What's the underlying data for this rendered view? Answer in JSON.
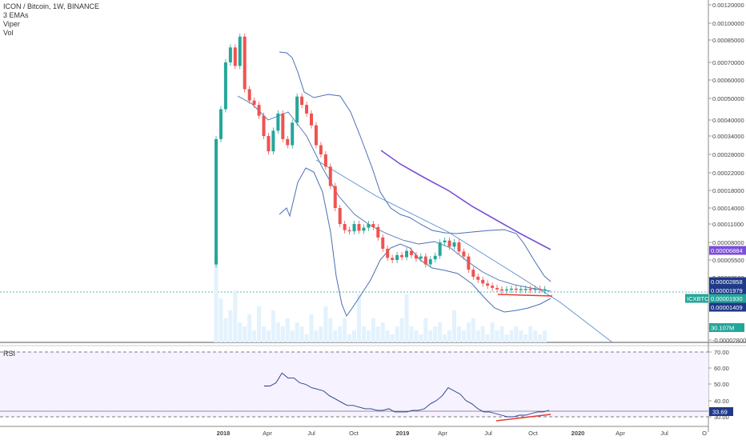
{
  "legend": {
    "title": "ICON / Bitcoin, 1W, BINANCE",
    "studies": [
      "3 EMAs",
      "Viper",
      "Vol"
    ]
  },
  "rsi_label": "RSI",
  "price_axis": {
    "ticks": [
      "0.00120000",
      "0.00100000",
      "0.00085000",
      "0.00070000",
      "0.00060000",
      "0.00050000",
      "0.00040000",
      "0.00034000",
      "0.00028000",
      "0.00022000",
      "0.00018000",
      "0.00014000",
      "0.00011000",
      "0.00008000",
      "0.00005500",
      "0.00003500",
      "0.00001000",
      "-0.00002800"
    ]
  },
  "price_labels": [
    {
      "text": "0.00006884",
      "color": "#7b4fd8"
    },
    {
      "text": "0.00002858",
      "color": "#1f3a8a"
    },
    {
      "text": "0.00001979",
      "color": "#1f3a8a"
    },
    {
      "text": "0.00001930",
      "color": "#26a69a"
    },
    {
      "text": "0.00001409",
      "color": "#1f3a8a"
    }
  ],
  "symbol_tag": "ICXBTC",
  "volume_label": "30.107M",
  "rsi_axis": {
    "ticks": [
      "70.00",
      "60.00",
      "50.00",
      "40.00",
      "30.00"
    ],
    "current": "33.69"
  },
  "time_axis": [
    "2018",
    "Apr",
    "Jul",
    "Oct",
    "2019",
    "Apr",
    "Jul",
    "Oct",
    "2020",
    "Apr",
    "Jul",
    "O"
  ],
  "chart_data": {
    "type": "candlestick",
    "series": [
      {
        "name": "ICXBTC",
        "kind": "candles",
        "values": [
          [
            5e-05,
            0.00033
          ],
          [
            0.00033,
            0.00045
          ],
          [
            0.00045,
            0.0007
          ],
          [
            0.0007,
            0.0008
          ],
          [
            0.0008,
            0.00068
          ],
          [
            0.00068,
            0.00088
          ],
          [
            0.00088,
            0.00055
          ],
          [
            0.00055,
            0.00049
          ],
          [
            0.00049,
            0.00047
          ],
          [
            0.00047,
            0.00042
          ],
          [
            0.00042,
            0.00034
          ],
          [
            0.00034,
            0.00029
          ],
          [
            0.00029,
            0.00036
          ],
          [
            0.00036,
            0.00043
          ],
          [
            0.00043,
            0.00033
          ],
          [
            0.00033,
            0.00031
          ],
          [
            0.00031,
            0.00039
          ],
          [
            0.00039,
            0.00051
          ],
          [
            0.00051,
            0.00047
          ],
          [
            0.00047,
            0.00043
          ],
          [
            0.00043,
            0.00038
          ],
          [
            0.00038,
            0.00031
          ],
          [
            0.00031,
            0.00028
          ],
          [
            0.00028,
            0.00024
          ],
          [
            0.00024,
            0.00019
          ],
          [
            0.00019,
            0.00014
          ],
          [
            0.00014,
            0.00011
          ],
          [
            0.00011,
            0.0001
          ],
          [
            0.0001,
            9.8e-05
          ],
          [
            9.8e-05,
            0.00011
          ],
          [
            0.00011,
            9.9e-05
          ],
          [
            9.9e-05,
            0.000104
          ],
          [
            0.000104,
            0.00011
          ],
          [
            0.00011,
            0.000105
          ],
          [
            0.000105,
            8.8e-05
          ],
          [
            8.8e-05,
            7.1e-05
          ],
          [
            7.1e-05,
            5.8e-05
          ],
          [
            5.8e-05,
            5.5e-05
          ],
          [
            5.5e-05,
            6.2e-05
          ],
          [
            6.2e-05,
            5.9e-05
          ],
          [
            5.9e-05,
            6.8e-05
          ],
          [
            6.8e-05,
            6.2e-05
          ],
          [
            6.2e-05,
            5.7e-05
          ],
          [
            5.7e-05,
            6e-05
          ],
          [
            6e-05,
            5e-05
          ],
          [
            5e-05,
            5.6e-05
          ],
          [
            5.6e-05,
            6.1e-05
          ],
          [
            6.1e-05,
            8e-05
          ],
          [
            8e-05,
            8.3e-05
          ],
          [
            8.3e-05,
            7.4e-05
          ],
          [
            7.4e-05,
            8e-05
          ],
          [
            8e-05,
            6.7e-05
          ],
          [
            6.7e-05,
            6e-05
          ],
          [
            6e-05,
            4.4e-05
          ],
          [
            4.4e-05,
            3.6e-05
          ],
          [
            3.6e-05,
            3.2e-05
          ],
          [
            3.2e-05,
            2.7e-05
          ],
          [
            2.7e-05,
            2.4e-05
          ],
          [
            2.4e-05,
            2.1e-05
          ],
          [
            2.1e-05,
            1.9e-05
          ],
          [
            1.9e-05,
            1.8e-05
          ],
          [
            1.8e-05,
            1.9e-05
          ],
          [
            1.9e-05,
            2e-05
          ],
          [
            2e-05,
            1.9e-05
          ],
          [
            1.9e-05,
            1.95e-05
          ],
          [
            1.95e-05,
            1.97e-05
          ],
          [
            1.97e-05,
            1.9e-05
          ],
          [
            1.9e-05,
            1.98e-05
          ],
          [
            1.98e-05,
            1.9e-05
          ],
          [
            1.9e-05,
            1.93e-05
          ]
        ]
      }
    ],
    "rsi_values": [
      49,
      49,
      51,
      57,
      54,
      54,
      51,
      50,
      48,
      47,
      46,
      43,
      41,
      39,
      37,
      37,
      36,
      35,
      35,
      34,
      34,
      35,
      33,
      33,
      33,
      34,
      34,
      35,
      38,
      40,
      43,
      48,
      46,
      44,
      40,
      38,
      35,
      33,
      33,
      32,
      31,
      30,
      30,
      31,
      31,
      32,
      33,
      33,
      34
    ],
    "rsi_range": [
      25,
      75
    ],
    "ylim_note": "non-linear price scale"
  }
}
